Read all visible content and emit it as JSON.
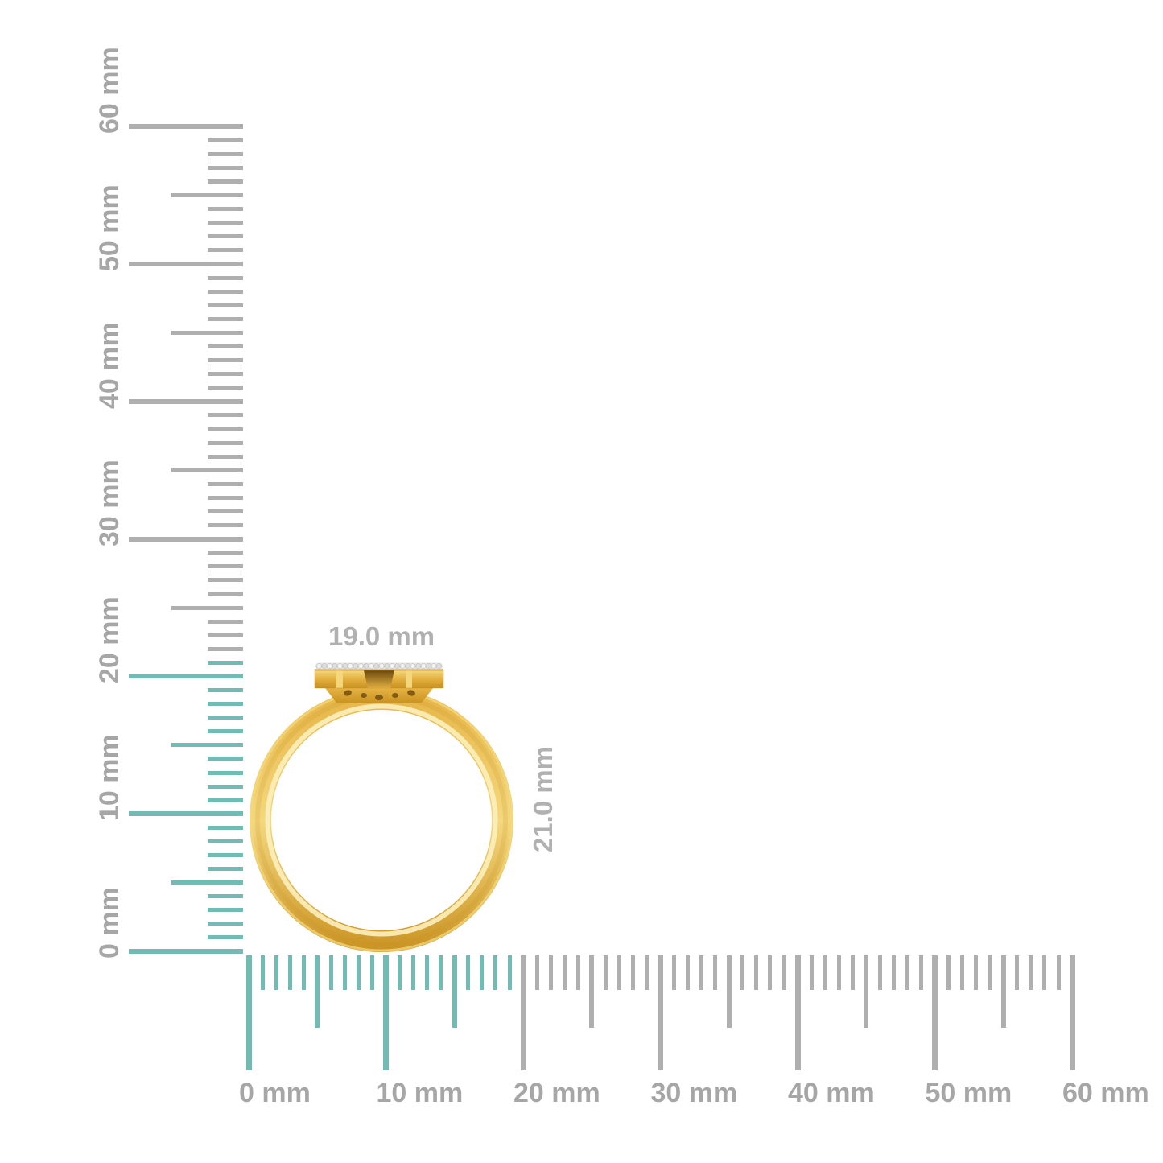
{
  "colors": {
    "background": "#ffffff",
    "highlight_teal": "#72BAB4",
    "tick_gray": "#AFAFAF",
    "ruler_label_gray": "#A6A6A6",
    "dimension_label_gray": "#B1B1B1",
    "gold_dark": "#C8901F",
    "gold_mid": "#E5B344",
    "gold_light": "#F4D87E",
    "gold_highlight": "#FCF0BC",
    "recess_brown": "#6B480D",
    "diamond_white": "#F3F3F3",
    "diamond_gray": "#DFDFDF",
    "diamond_shadow": "#C9C9C9"
  },
  "vertical_ruler": {
    "unit": "mm",
    "min_mm": 0,
    "max_mm": 60,
    "tick_step_mm": 1,
    "half_step_mm": 5,
    "major_step_mm": 10,
    "highlight_to_mm": 21,
    "labels": [
      "0 mm",
      "10 mm",
      "20 mm",
      "30 mm",
      "40 mm",
      "50 mm",
      "60 mm"
    ]
  },
  "horizontal_ruler": {
    "unit": "mm",
    "min_mm": 0,
    "max_mm": 60,
    "tick_step_mm": 1,
    "half_step_mm": 5,
    "major_step_mm": 10,
    "highlight_to_mm": 19,
    "labels": [
      "0 mm",
      "10 mm",
      "20 mm",
      "30 mm",
      "40 mm",
      "50 mm",
      "60 mm"
    ]
  },
  "ring": {
    "width_label": "19.0 mm",
    "height_label": "21.0 mm",
    "diamond_count": 24
  }
}
